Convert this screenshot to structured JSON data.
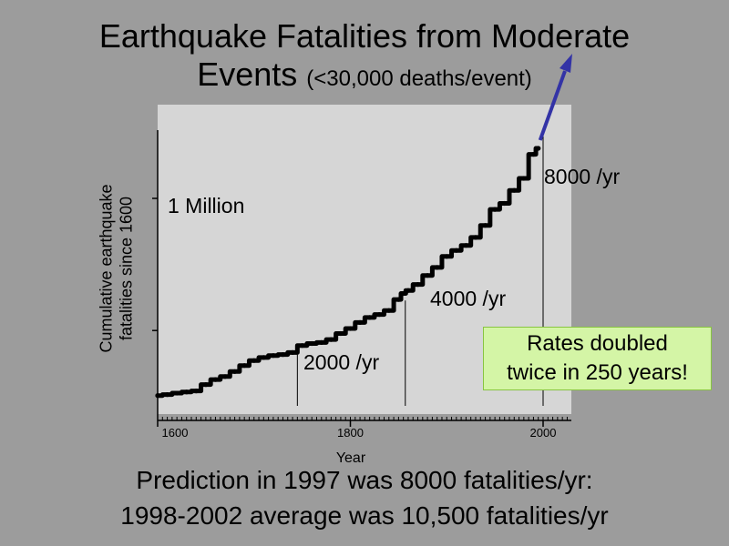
{
  "slide": {
    "title_line1": "Earthquake Fatalities from Moderate",
    "title_line2_main": "Events",
    "title_line2_sub": "(<30,000 deaths/event)",
    "callout": [
      "Rates doubled",
      "twice in 250 years!"
    ],
    "footer_line1": "Prediction in 1997 was 8000 fatalities/yr:",
    "footer_line2": "1998-2002 average was 10,500 fatalities/yr"
  },
  "colors": {
    "slide_background": "#9c9c9c",
    "plot_background": "#d6d6d6",
    "data_line": "#000000",
    "arrow": "#3333a6",
    "callout_fill": "#d4f5a6",
    "callout_border": "#88c540"
  },
  "chart_data": {
    "type": "line",
    "title": "Earthquake Fatalities from Moderate Events (<30,000 deaths/event)",
    "xlabel": "Year",
    "ylabel": "Cumulative earthquake fatalities since 1600",
    "xlim": [
      1600,
      2025
    ],
    "ylim": [
      0,
      1400000
    ],
    "x_ticks": [
      1600,
      1800,
      2000
    ],
    "x_tick_labels": [
      "1600",
      "1800",
      "2000"
    ],
    "y_tick_labels": [],
    "grid": false,
    "legend": "none",
    "series": [
      {
        "x": [
          1600,
          1610,
          1620,
          1630,
          1640,
          1650,
          1660,
          1670,
          1680,
          1690,
          1700,
          1710,
          1720,
          1730,
          1740,
          1750,
          1760,
          1770,
          1780,
          1790,
          1800,
          1810,
          1820,
          1830,
          1840,
          1850,
          1855,
          1860,
          1870,
          1880,
          1890,
          1900,
          1910,
          1920,
          1930,
          1940,
          1950,
          1960,
          1970,
          1980,
          1990,
          1995
        ],
        "y": [
          15000,
          20000,
          27000,
          33000,
          38000,
          70000,
          95000,
          110000,
          135000,
          165000,
          190000,
          205000,
          215000,
          220000,
          230000,
          265000,
          275000,
          280000,
          295000,
          325000,
          350000,
          380000,
          405000,
          420000,
          440000,
          495000,
          525000,
          540000,
          570000,
          615000,
          655000,
          710000,
          740000,
          765000,
          805000,
          865000,
          945000,
          975000,
          1040000,
          1100000,
          1220000,
          1250000
        ]
      }
    ],
    "annotations": [
      {
        "text": "1 Million",
        "x": 1610,
        "y": 1000000
      },
      {
        "text": "2000 /yr",
        "x": 1755,
        "y": 140000,
        "marker_x": 1745
      },
      {
        "text": "4000 /yr",
        "x": 1880,
        "y": 500000,
        "marker_x": 1857
      },
      {
        "text": "8000 /yr",
        "x": 2000,
        "y": 1130000,
        "marker_x": 2000
      }
    ]
  }
}
